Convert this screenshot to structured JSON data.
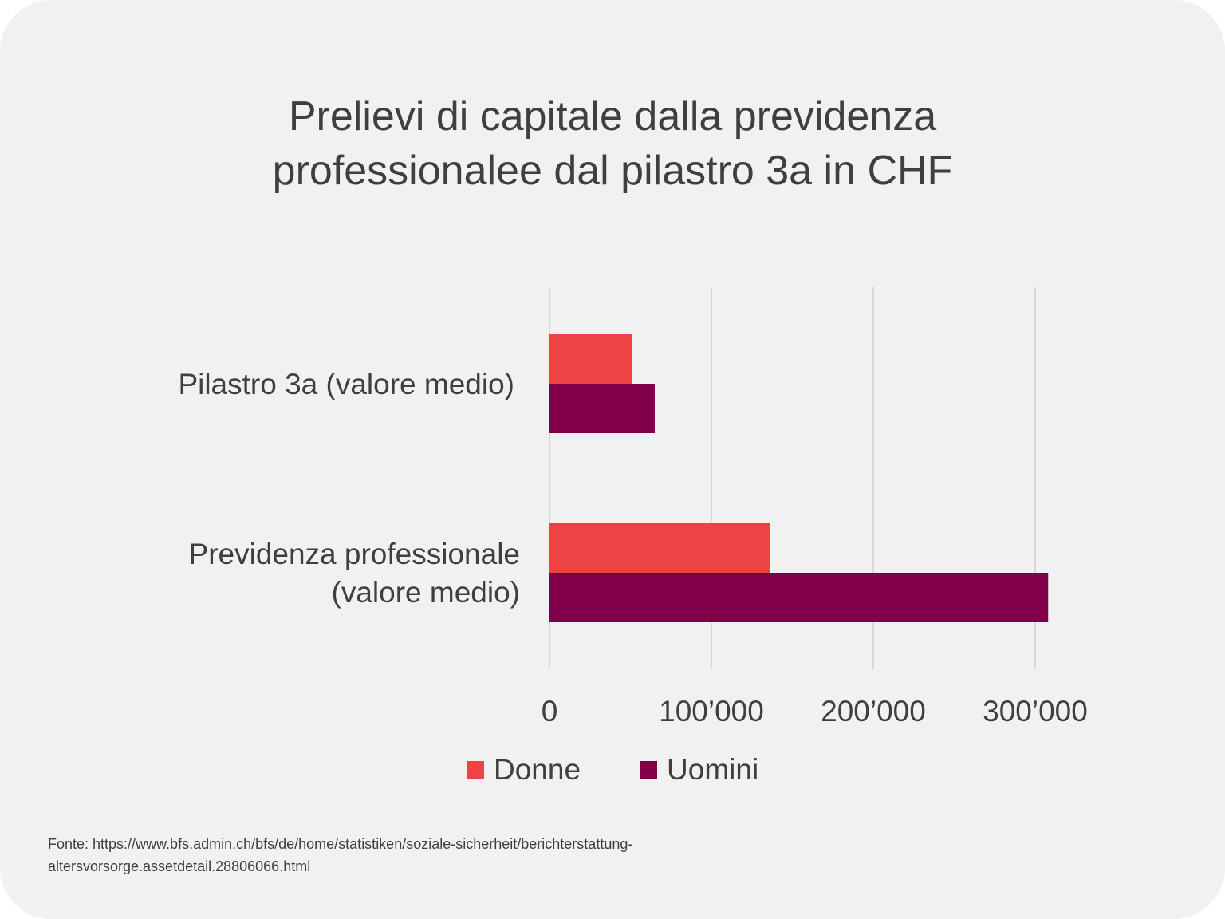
{
  "title": {
    "line1": "Prelievi di capitale dalla previdenza",
    "line2": "professionalee dal pilastro 3a in CHF"
  },
  "chart_data": {
    "type": "bar",
    "orientation": "horizontal",
    "categories": [
      [
        "Pilastro 3a (valore medio)"
      ],
      [
        "Previdenza professionale",
        "(valore medio)"
      ]
    ],
    "series": [
      {
        "name": "Donne",
        "color": "#ee4344",
        "values": [
          51000,
          136000
        ]
      },
      {
        "name": "Uomini",
        "color": "#82004a",
        "values": [
          65000,
          308000
        ]
      }
    ],
    "xlim": [
      0,
      300000
    ],
    "x_ticks": [
      0,
      100000,
      200000,
      300000
    ],
    "x_tick_labels": [
      "0",
      "100’000",
      "200’000",
      "300’000"
    ],
    "grid": "vertical",
    "legend_position": "bottom",
    "xlabel": "",
    "ylabel": ""
  },
  "source": "Fonte: https://www.bfs.admin.ch/bfs/de/home/statistiken/soziale-sicherheit/berichterstattung-altersvorsorge.assetdetail.28806066.html",
  "colors": {
    "background": "#f1f1f1",
    "text": "#3f3f3f",
    "grid": "#d9d9d9"
  }
}
